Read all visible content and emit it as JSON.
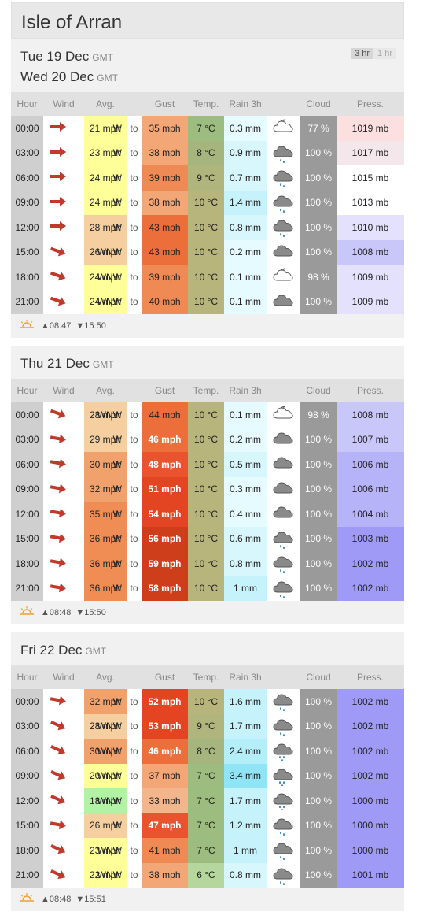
{
  "location": "Isle of Arran",
  "toggle": {
    "active": "3 hr",
    "inactive": "1 hr"
  },
  "headers": [
    "Hour",
    "Wind",
    "Avg.",
    "",
    "Gust",
    "Temp.",
    "Rain 3h",
    "",
    "Cloud",
    "Press."
  ],
  "connector": "to",
  "days": [
    {
      "dates": [
        {
          "label": "Tue 19 Dec",
          "tz": "GMT"
        },
        {
          "label": "Wed 20 Dec",
          "tz": "GMT"
        }
      ],
      "rows": [
        {
          "hour": "00:00",
          "dir": "W",
          "dir_deg": 180,
          "avg": "21 mph",
          "gust": "35 mph",
          "temp": "7 °C",
          "rain": "0.3 mm",
          "icon": "partly-cloudy-night-icon",
          "cloud": "77 %",
          "press": "1019 mb"
        },
        {
          "hour": "03:00",
          "dir": "W",
          "dir_deg": 180,
          "avg": "23 mph",
          "gust": "38 mph",
          "temp": "8 °C",
          "rain": "0.9 mm",
          "icon": "rain-cloud-icon",
          "cloud": "100 %",
          "press": "1017 mb"
        },
        {
          "hour": "06:00",
          "dir": "W",
          "dir_deg": 180,
          "avg": "24 mph",
          "gust": "39 mph",
          "temp": "9 °C",
          "rain": "0.7 mm",
          "icon": "rain-cloud-icon",
          "cloud": "100 %",
          "press": "1015 mb"
        },
        {
          "hour": "09:00",
          "dir": "W",
          "dir_deg": 180,
          "avg": "24 mph",
          "gust": "38 mph",
          "temp": "10 °C",
          "rain": "1.4 mm",
          "icon": "rain-cloud-icon",
          "cloud": "100 %",
          "press": "1013 mb"
        },
        {
          "hour": "12:00",
          "dir": "W",
          "dir_deg": 180,
          "avg": "28 mph",
          "gust": "43 mph",
          "temp": "10 °C",
          "rain": "0.8 mm",
          "icon": "rain-cloud-icon",
          "cloud": "100 %",
          "press": "1010 mb"
        },
        {
          "hour": "15:00",
          "dir": "WNW",
          "dir_deg": 200,
          "avg": "26 mph",
          "gust": "43 mph",
          "temp": "10 °C",
          "rain": "0.2 mm",
          "icon": "cloud-icon",
          "cloud": "100 %",
          "press": "1008 mb"
        },
        {
          "hour": "18:00",
          "dir": "WNW",
          "dir_deg": 200,
          "avg": "24 mph",
          "gust": "39 mph",
          "temp": "10 °C",
          "rain": "0.1 mm",
          "icon": "partly-cloudy-night-icon",
          "cloud": "98 %",
          "press": "1009 mb"
        },
        {
          "hour": "21:00",
          "dir": "WNW",
          "dir_deg": 200,
          "avg": "24 mph",
          "gust": "40 mph",
          "temp": "10 °C",
          "rain": "0.1 mm",
          "icon": "cloud-icon",
          "cloud": "100 %",
          "press": "1009 mb"
        }
      ],
      "sunrise": "▲08:47",
      "sunset": "▼15:50"
    },
    {
      "dates": [
        {
          "label": "Thu 21 Dec",
          "tz": "GMT"
        }
      ],
      "rows": [
        {
          "hour": "00:00",
          "dir": "WNW",
          "dir_deg": 200,
          "avg": "28 mph",
          "gust": "44 mph",
          "temp": "10 °C",
          "rain": "0.1 mm",
          "icon": "partly-cloudy-night-icon",
          "cloud": "98 %",
          "press": "1008 mb"
        },
        {
          "hour": "03:00",
          "dir": "W",
          "dir_deg": 190,
          "avg": "29 mph",
          "gust": "46 mph",
          "temp": "10 °C",
          "rain": "0.2 mm",
          "icon": "cloud-icon",
          "cloud": "100 %",
          "press": "1007 mb"
        },
        {
          "hour": "06:00",
          "dir": "W",
          "dir_deg": 190,
          "avg": "30 mph",
          "gust": "48 mph",
          "temp": "10 °C",
          "rain": "0.5 mm",
          "icon": "cloud-icon",
          "cloud": "100 %",
          "press": "1006 mb"
        },
        {
          "hour": "09:00",
          "dir": "W",
          "dir_deg": 190,
          "avg": "32 mph",
          "gust": "51 mph",
          "temp": "10 °C",
          "rain": "0.3 mm",
          "icon": "cloud-icon",
          "cloud": "100 %",
          "press": "1006 mb"
        },
        {
          "hour": "12:00",
          "dir": "W",
          "dir_deg": 190,
          "avg": "35 mph",
          "gust": "54 mph",
          "temp": "10 °C",
          "rain": "0.4 mm",
          "icon": "cloud-icon",
          "cloud": "100 %",
          "press": "1004 mb"
        },
        {
          "hour": "15:00",
          "dir": "W",
          "dir_deg": 190,
          "avg": "36 mph",
          "gust": "56 mph",
          "temp": "10 °C",
          "rain": "0.6 mm",
          "icon": "rain-cloud-icon",
          "cloud": "100 %",
          "press": "1003 mb"
        },
        {
          "hour": "18:00",
          "dir": "W",
          "dir_deg": 190,
          "avg": "36 mph",
          "gust": "59 mph",
          "temp": "10 °C",
          "rain": "0.8 mm",
          "icon": "rain-cloud-icon",
          "cloud": "100 %",
          "press": "1002 mb"
        },
        {
          "hour": "21:00",
          "dir": "W",
          "dir_deg": 190,
          "avg": "36 mph",
          "gust": "58 mph",
          "temp": "10 °C",
          "rain": "1 mm",
          "icon": "rain-cloud-icon",
          "cloud": "100 %",
          "press": "1002 mb"
        }
      ],
      "sunrise": "▲08:48",
      "sunset": "▼15:50"
    },
    {
      "dates": [
        {
          "label": "Fri 22 Dec",
          "tz": "GMT"
        }
      ],
      "rows": [
        {
          "hour": "00:00",
          "dir": "W",
          "dir_deg": 190,
          "avg": "32 mph",
          "gust": "52 mph",
          "temp": "10 °C",
          "rain": "1.6 mm",
          "icon": "rain-cloud-icon",
          "cloud": "100 %",
          "press": "1002 mb"
        },
        {
          "hour": "03:00",
          "dir": "WNW",
          "dir_deg": 205,
          "avg": "28 mph",
          "gust": "53 mph",
          "temp": "9 °C",
          "rain": "1.7 mm",
          "icon": "rain-cloud-icon",
          "cloud": "100 %",
          "press": "1002 mb"
        },
        {
          "hour": "06:00",
          "dir": "WNW",
          "dir_deg": 205,
          "avg": "30 mph",
          "gust": "46 mph",
          "temp": "8 °C",
          "rain": "2.4 mm",
          "icon": "heavy-rain-cloud-icon",
          "cloud": "100 %",
          "press": "1002 mb"
        },
        {
          "hour": "09:00",
          "dir": "WNW",
          "dir_deg": 205,
          "avg": "20 mph",
          "gust": "37 mph",
          "temp": "7 °C",
          "rain": "3.4 mm",
          "icon": "heavy-rain-cloud-icon",
          "cloud": "100 %",
          "press": "1002 mb"
        },
        {
          "hour": "12:00",
          "dir": "WNW",
          "dir_deg": 205,
          "avg": "18 mph",
          "gust": "33 mph",
          "temp": "7 °C",
          "rain": "1.7 mm",
          "icon": "heavy-rain-cloud-icon",
          "cloud": "100 %",
          "press": "1000 mb"
        },
        {
          "hour": "15:00",
          "dir": "W",
          "dir_deg": 190,
          "avg": "26 mph",
          "gust": "47 mph",
          "temp": "7 °C",
          "rain": "1.2 mm",
          "icon": "rain-cloud-icon",
          "cloud": "100 %",
          "press": "1000 mb"
        },
        {
          "hour": "18:00",
          "dir": "WNW",
          "dir_deg": 205,
          "avg": "23 mph",
          "gust": "41 mph",
          "temp": "7 °C",
          "rain": "1 mm",
          "icon": "rain-cloud-icon",
          "cloud": "100 %",
          "press": "1000 mb"
        },
        {
          "hour": "21:00",
          "dir": "WNW",
          "dir_deg": 205,
          "avg": "22 mph",
          "gust": "38 mph",
          "temp": "6 °C",
          "rain": "0.8 mm",
          "icon": "rain-cloud-icon",
          "cloud": "100 %",
          "press": "1001 mb"
        }
      ],
      "sunrise": "▲08:48",
      "sunset": "▼15:51"
    }
  ],
  "colors": {
    "arrow": "#c0392b",
    "header_bg": "#e1e1e1",
    "hour_bg": "#cfcfcf",
    "cloud_bg": "#9a9a9a",
    "icon_gray": "#8a8a8a",
    "sun_orange": "#f0a030"
  }
}
